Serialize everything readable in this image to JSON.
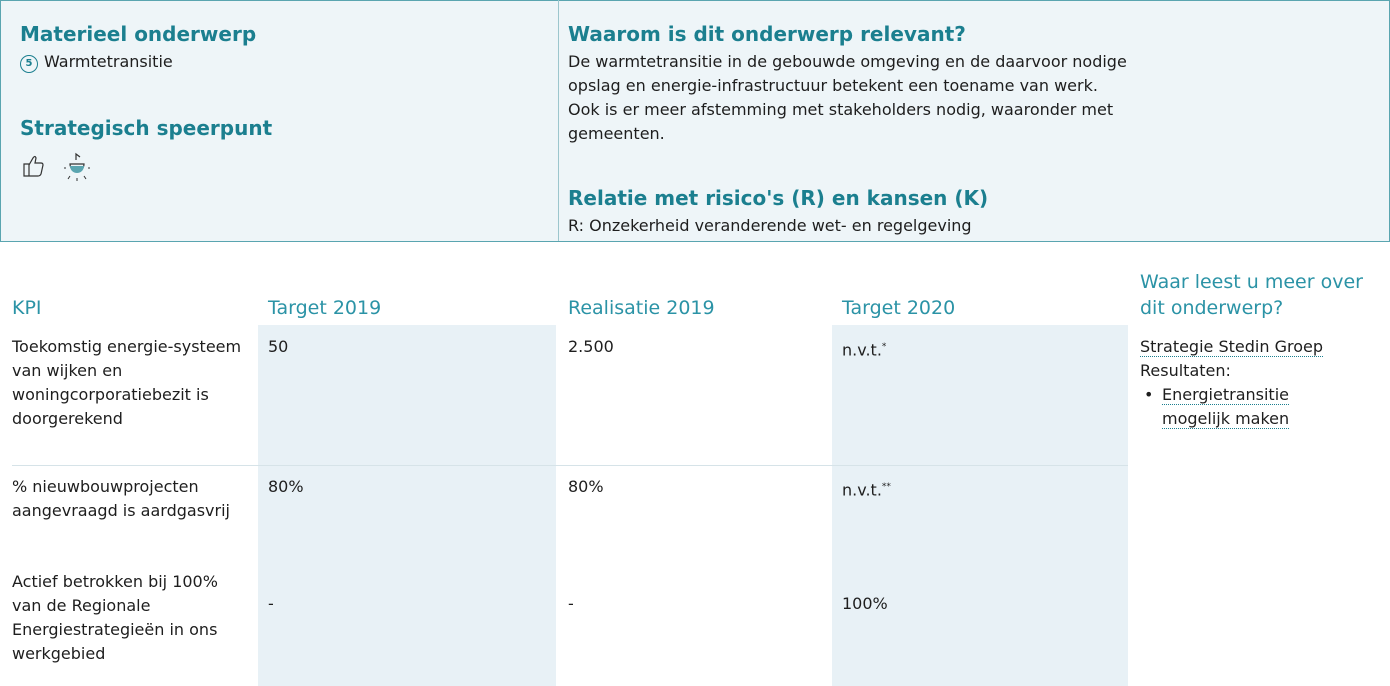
{
  "left": {
    "subject_heading": "Materieel onderwerp",
    "subject_number": "5",
    "subject": "Warmtetransitie",
    "speerpunt_heading": "Strategisch speerpunt"
  },
  "right": {
    "relevance_heading": "Waarom is dit onderwerp relevant?",
    "relevance_text": "De warmtetransitie in de gebouwde omgeving en de daarvoor nodige opslag en energie-infrastructuur betekent een toename van werk. Ook is er meer afstemming met stakeholders nodig, waaronder met gemeenten.",
    "risk_heading": "Relatie met risico's (R) en kansen (K)",
    "risk_text": "R: Onzekerheid veranderende wet- en regelgeving"
  },
  "table": {
    "headers": [
      "KPI",
      "Target 2019",
      "Realisatie 2019",
      "Target 2020",
      "Waar leest u meer over dit onderwerp?"
    ],
    "rows": [
      {
        "kpi": "Toekomstig energie-systeem van wijken en woningcorporatiebezit is doorgerekend",
        "target_2019": "50",
        "realisatie_2019": "2.500",
        "target_2020": "n.v.t.",
        "target_2020_note": "*"
      },
      {
        "kpi": "% nieuwbouwprojecten aangevraagd is aardgasvrij",
        "target_2019": "80%",
        "realisatie_2019": "80%",
        "target_2020": "n.v.t.",
        "target_2020_note": "**"
      },
      {
        "kpi": "Actief betrokken bij 100% van de Regionale Energiestrategieën in ons werkgebied",
        "target_2019": "-",
        "realisatie_2019": "-",
        "target_2020": "100%"
      }
    ],
    "more": {
      "link": "Strategie Stedin Groep",
      "label": "Resultaten:",
      "items": [
        "Energietransitie mogelijk maken"
      ]
    }
  }
}
